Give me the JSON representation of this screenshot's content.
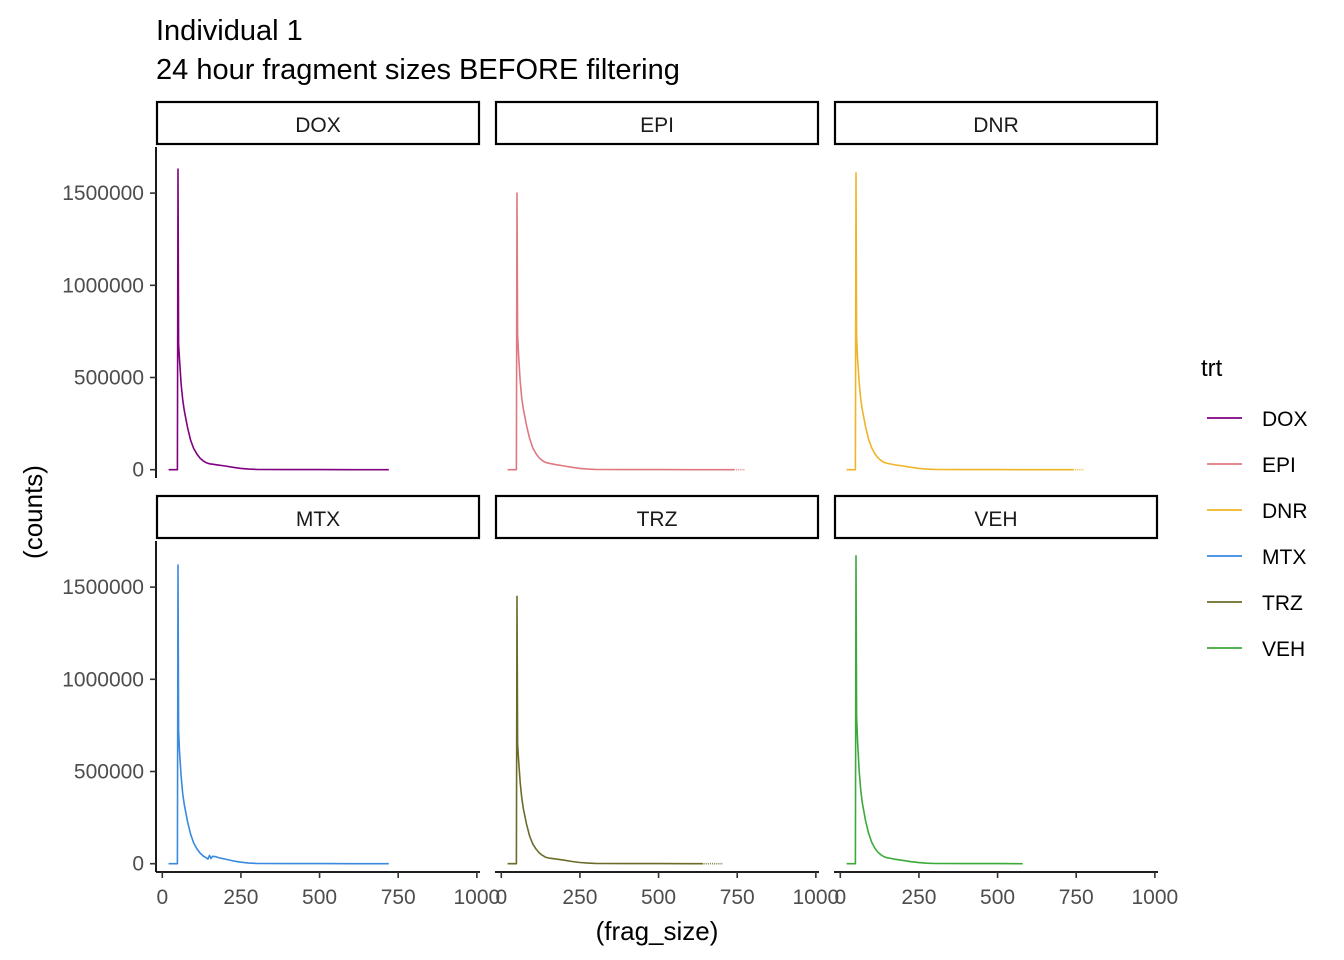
{
  "chart_data": {
    "type": "line",
    "title": "Individual 1",
    "subtitle": "24 hour fragment sizes BEFORE filtering",
    "xlabel": "(frag_size)",
    "ylabel": "(counts)",
    "xlim": [
      -20,
      1010
    ],
    "ylim": [
      -45000,
      1750000
    ],
    "x_ticks": [
      0,
      250,
      500,
      750,
      1000
    ],
    "y_ticks": [
      0,
      500000,
      1000000,
      1500000
    ],
    "grid": false,
    "legend": {
      "title": "trt",
      "placement": "right",
      "items": [
        {
          "label": "DOX",
          "color": "#800080"
        },
        {
          "label": "EPI",
          "color": "#E07882"
        },
        {
          "label": "DNR",
          "color": "#F0B428"
        },
        {
          "label": "MTX",
          "color": "#3A8AE0"
        },
        {
          "label": "TRZ",
          "color": "#6B6B2A"
        },
        {
          "label": "VEH",
          "color": "#3BAA3B"
        }
      ]
    },
    "panels": [
      {
        "label": "DOX",
        "color": "#800080",
        "tail_end": 750,
        "series": [
          [
            20,
            0
          ],
          [
            48,
            0
          ],
          [
            50,
            1630000
          ],
          [
            52,
            680000
          ],
          [
            55,
            590000
          ],
          [
            60,
            460000
          ],
          [
            65,
            380000
          ],
          [
            70,
            320000
          ],
          [
            80,
            230000
          ],
          [
            90,
            160000
          ],
          [
            100,
            115000
          ],
          [
            110,
            85000
          ],
          [
            120,
            63000
          ],
          [
            130,
            48000
          ],
          [
            140,
            38000
          ],
          [
            150,
            32000
          ],
          [
            160,
            30000
          ],
          [
            175,
            26000
          ],
          [
            200,
            20000
          ],
          [
            225,
            13000
          ],
          [
            250,
            7000
          ],
          [
            275,
            3000
          ],
          [
            300,
            1500
          ],
          [
            400,
            800
          ],
          [
            500,
            400
          ],
          [
            600,
            200
          ],
          [
            700,
            100
          ],
          [
            720,
            0
          ]
        ]
      },
      {
        "label": "EPI",
        "color": "#E07882",
        "tail_end": 770,
        "series": [
          [
            20,
            0
          ],
          [
            48,
            0
          ],
          [
            50,
            1500000
          ],
          [
            52,
            730000
          ],
          [
            55,
            620000
          ],
          [
            60,
            480000
          ],
          [
            65,
            390000
          ],
          [
            70,
            330000
          ],
          [
            80,
            240000
          ],
          [
            90,
            170000
          ],
          [
            100,
            120000
          ],
          [
            110,
            88000
          ],
          [
            120,
            65000
          ],
          [
            130,
            50000
          ],
          [
            140,
            40000
          ],
          [
            150,
            35000
          ],
          [
            160,
            32000
          ],
          [
            175,
            27000
          ],
          [
            200,
            20000
          ],
          [
            225,
            13000
          ],
          [
            250,
            7000
          ],
          [
            275,
            3000
          ],
          [
            300,
            1500
          ],
          [
            400,
            800
          ],
          [
            500,
            400
          ],
          [
            600,
            200
          ],
          [
            700,
            100
          ],
          [
            740,
            0
          ]
        ]
      },
      {
        "label": "DNR",
        "color": "#F0B428",
        "tail_end": 770,
        "series": [
          [
            20,
            0
          ],
          [
            48,
            0
          ],
          [
            50,
            1610000
          ],
          [
            52,
            720000
          ],
          [
            55,
            600000
          ],
          [
            60,
            470000
          ],
          [
            65,
            385000
          ],
          [
            70,
            325000
          ],
          [
            80,
            235000
          ],
          [
            90,
            165000
          ],
          [
            100,
            118000
          ],
          [
            110,
            86000
          ],
          [
            120,
            64000
          ],
          [
            130,
            49000
          ],
          [
            140,
            39000
          ],
          [
            150,
            34000
          ],
          [
            160,
            31000
          ],
          [
            175,
            26000
          ],
          [
            200,
            20000
          ],
          [
            225,
            13000
          ],
          [
            250,
            7000
          ],
          [
            275,
            3000
          ],
          [
            300,
            1500
          ],
          [
            400,
            800
          ],
          [
            500,
            400
          ],
          [
            600,
            200
          ],
          [
            700,
            100
          ],
          [
            740,
            0
          ]
        ]
      },
      {
        "label": "MTX",
        "color": "#3A8AE0",
        "tail_end": 745,
        "series": [
          [
            20,
            0
          ],
          [
            48,
            0
          ],
          [
            50,
            1620000
          ],
          [
            52,
            720000
          ],
          [
            55,
            600000
          ],
          [
            60,
            470000
          ],
          [
            65,
            380000
          ],
          [
            70,
            320000
          ],
          [
            80,
            230000
          ],
          [
            90,
            160000
          ],
          [
            100,
            112000
          ],
          [
            110,
            80000
          ],
          [
            120,
            58000
          ],
          [
            130,
            42000
          ],
          [
            140,
            32000
          ],
          [
            145,
            25000
          ],
          [
            150,
            45000
          ],
          [
            155,
            28000
          ],
          [
            160,
            40000
          ],
          [
            170,
            38000
          ],
          [
            180,
            32000
          ],
          [
            200,
            25000
          ],
          [
            225,
            15000
          ],
          [
            250,
            8000
          ],
          [
            275,
            3000
          ],
          [
            300,
            1500
          ],
          [
            400,
            800
          ],
          [
            500,
            400
          ],
          [
            600,
            200
          ],
          [
            700,
            100
          ],
          [
            720,
            0
          ]
        ]
      },
      {
        "label": "TRZ",
        "color": "#6B6B2A",
        "tail_end": 700,
        "series": [
          [
            20,
            0
          ],
          [
            48,
            0
          ],
          [
            50,
            1450000
          ],
          [
            52,
            650000
          ],
          [
            55,
            560000
          ],
          [
            60,
            440000
          ],
          [
            65,
            360000
          ],
          [
            70,
            300000
          ],
          [
            80,
            215000
          ],
          [
            90,
            150000
          ],
          [
            100,
            108000
          ],
          [
            110,
            80000
          ],
          [
            120,
            60000
          ],
          [
            130,
            46000
          ],
          [
            140,
            36000
          ],
          [
            150,
            31000
          ],
          [
            160,
            29000
          ],
          [
            175,
            25000
          ],
          [
            200,
            19000
          ],
          [
            225,
            12000
          ],
          [
            250,
            6500
          ],
          [
            275,
            3000
          ],
          [
            300,
            1500
          ],
          [
            400,
            800
          ],
          [
            500,
            400
          ],
          [
            600,
            100
          ],
          [
            640,
            0
          ]
        ]
      },
      {
        "label": "VEH",
        "color": "#3BAA3B",
        "tail_end": 670,
        "series": [
          [
            20,
            0
          ],
          [
            48,
            0
          ],
          [
            50,
            1670000
          ],
          [
            52,
            800000
          ],
          [
            55,
            660000
          ],
          [
            60,
            500000
          ],
          [
            65,
            400000
          ],
          [
            70,
            330000
          ],
          [
            80,
            235000
          ],
          [
            90,
            165000
          ],
          [
            100,
            116000
          ],
          [
            110,
            84000
          ],
          [
            120,
            62000
          ],
          [
            130,
            47000
          ],
          [
            140,
            37000
          ],
          [
            150,
            32000
          ],
          [
            160,
            29000
          ],
          [
            175,
            24000
          ],
          [
            200,
            18000
          ],
          [
            225,
            11000
          ],
          [
            250,
            6000
          ],
          [
            275,
            2500
          ],
          [
            300,
            1200
          ],
          [
            400,
            600
          ],
          [
            500,
            300
          ],
          [
            580,
            0
          ]
        ]
      }
    ]
  }
}
